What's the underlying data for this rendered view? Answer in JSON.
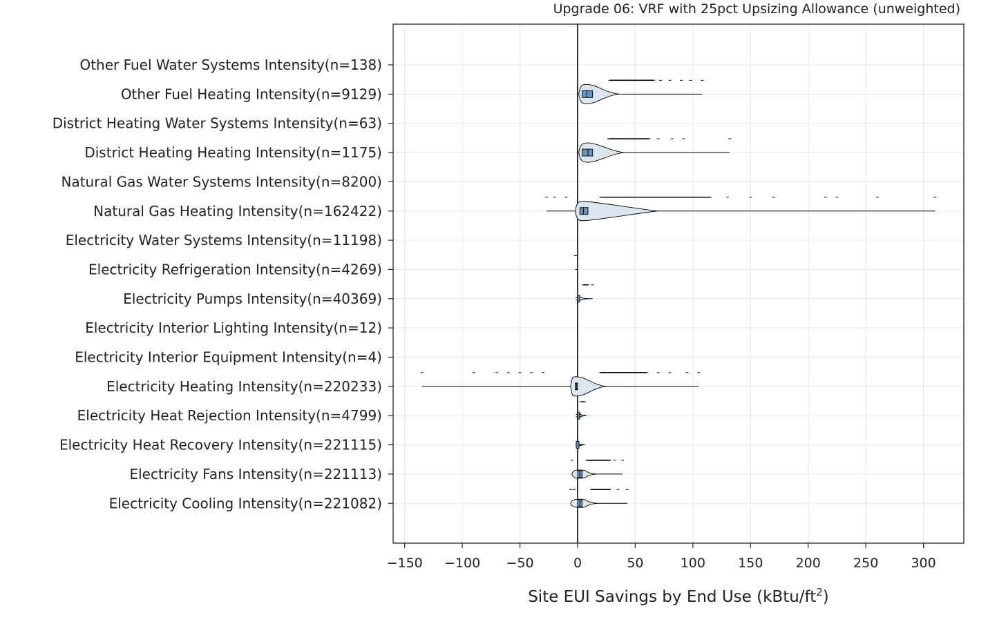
{
  "chart_data": {
    "type": "violin",
    "title": "Upgrade 06: VRF with 25pct Upsizing Allowance (unweighted)",
    "xlabel": "Site EUI Savings by End Use (kBtu/ft",
    "xlabel_sup": "2",
    "xlabel_suffix": ")",
    "xlim": [
      -160,
      335
    ],
    "xticks": [
      -150,
      -100,
      -50,
      0,
      50,
      100,
      150,
      200,
      250,
      300
    ],
    "xtick_labels": [
      "−150",
      "−100",
      "−50",
      "0",
      "50",
      "100",
      "150",
      "200",
      "250",
      "300"
    ],
    "grid": true,
    "colors": {
      "box_fill": "#6a91b8",
      "violin_fill": "#dbe6f0",
      "line": "#000000",
      "grid": "#e6e6e6"
    },
    "categories": [
      {
        "name": "Other Fuel Water Systems",
        "n_label": "Intensity(n=138)",
        "min": 0,
        "max": 0,
        "q1": 0,
        "median": 0,
        "q3": 0,
        "width": 0
      },
      {
        "name": "Other Fuel Heating",
        "n_label": "Intensity(n=9129)",
        "min": 1,
        "max": 108,
        "q1": 4,
        "median": 8,
        "q3": 13,
        "width": 14,
        "outliers": [
          28,
          35,
          42,
          50,
          58,
          66,
          72,
          80,
          90,
          98,
          108
        ]
      },
      {
        "name": "District Heating Water Systems",
        "n_label": "Intensity(n=63)",
        "min": 0,
        "max": 0,
        "q1": 0,
        "median": 0,
        "q3": 0,
        "width": 0
      },
      {
        "name": "District Heating Heating",
        "n_label": "Intensity(n=1175)",
        "min": 1,
        "max": 132,
        "q1": 4,
        "median": 9,
        "q3": 13,
        "width": 14,
        "outliers": [
          27,
          33,
          40,
          48,
          56,
          62,
          70,
          82,
          92,
          132
        ]
      },
      {
        "name": "Natural Gas Water Systems",
        "n_label": "Intensity(n=8200)",
        "min": 0,
        "max": 0,
        "q1": 0,
        "median": 0,
        "q3": 0,
        "width": 0
      },
      {
        "name": "Natural Gas Heating",
        "n_label": "Intensity(n=162422)",
        "min": -27,
        "max": 310,
        "q1": 2,
        "median": 5,
        "q3": 9,
        "width": 14,
        "outliers": [
          -27,
          -20,
          -10,
          20,
          30,
          40,
          55,
          70,
          85,
          100,
          115,
          130,
          150,
          170,
          215,
          225,
          260,
          310
        ]
      },
      {
        "name": "Electricity Water Systems",
        "n_label": "Intensity(n=11198)",
        "min": 0,
        "max": 0,
        "q1": 0,
        "median": 0,
        "q3": 0,
        "width": 0
      },
      {
        "name": "Electricity Refrigeration",
        "n_label": "Intensity(n=4269)",
        "min": -2,
        "max": 0,
        "q1": 0,
        "median": 0,
        "q3": 0,
        "width": 0,
        "outliers": [
          -2,
          -1
        ]
      },
      {
        "name": "Electricity Pumps",
        "n_label": "Intensity(n=40369)",
        "min": 0,
        "max": 13,
        "q1": 0,
        "median": 0,
        "q3": 1,
        "width": 2,
        "outliers": [
          5,
          9,
          13
        ]
      },
      {
        "name": "Electricity Interior Lighting",
        "n_label": "Intensity(n=12)",
        "min": 0,
        "max": 0,
        "q1": 0,
        "median": 0,
        "q3": 0,
        "width": 0
      },
      {
        "name": "Electricity Interior Equipment",
        "n_label": "Intensity(n=4)",
        "min": 0,
        "max": 0,
        "q1": 0,
        "median": 0,
        "q3": 0,
        "width": 0
      },
      {
        "name": "Electricity Heating",
        "n_label": "Intensity(n=220233)",
        "min": -135,
        "max": 105,
        "q1": -2,
        "median": -1,
        "q3": 0,
        "width": 14,
        "outliers": [
          -135,
          -90,
          -70,
          -60,
          -50,
          -40,
          -30,
          20,
          30,
          40,
          50,
          60,
          70,
          80,
          95,
          105
        ]
      },
      {
        "name": "Electricity Heat Rejection",
        "n_label": "Intensity(n=4799)",
        "min": 0,
        "max": 6,
        "q1": 0,
        "median": 0,
        "q3": 1,
        "width": 2,
        "outliers": [
          3,
          6
        ]
      },
      {
        "name": "Electricity Heat Recovery",
        "n_label": "Intensity(n=221115)",
        "min": 0,
        "max": 2,
        "q1": 0,
        "median": 0,
        "q3": 0,
        "width": 1
      },
      {
        "name": "Electricity Fans",
        "n_label": "Intensity(n=221113)",
        "min": -5,
        "max": 39,
        "q1": 0,
        "median": 2,
        "q3": 4,
        "width": 6,
        "outliers": [
          -5,
          8,
          15,
          22,
          28,
          32,
          39
        ]
      },
      {
        "name": "Electricity Cooling",
        "n_label": "Intensity(n=221082)",
        "min": -6,
        "max": 43,
        "q1": 0,
        "median": 2,
        "q3": 4,
        "width": 6,
        "outliers": [
          -6,
          -3,
          12,
          20,
          28,
          35,
          43
        ]
      }
    ]
  }
}
